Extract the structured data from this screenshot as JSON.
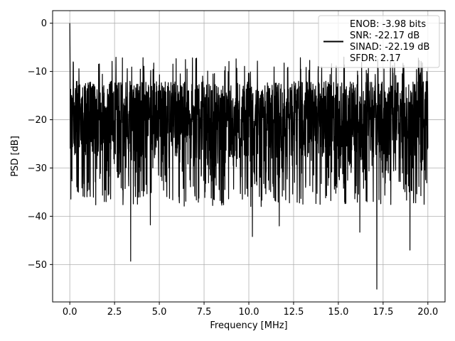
{
  "chart_data": {
    "type": "line",
    "title": "",
    "xlabel": "Frequency [MHz]",
    "ylabel": "PSD [dB]",
    "xlim": [
      -0.96,
      20.96
    ],
    "ylim": [
      -57.75,
      2.6
    ],
    "xticks": [
      0.0,
      2.5,
      5.0,
      7.5,
      10.0,
      12.5,
      15.0,
      17.5,
      20.0
    ],
    "xtick_labels": [
      "0.0",
      "2.5",
      "5.0",
      "7.5",
      "10.0",
      "12.5",
      "15.0",
      "17.5",
      "20.0"
    ],
    "yticks": [
      0,
      -10,
      -20,
      -30,
      -40,
      -50
    ],
    "ytick_labels": [
      "0",
      "−10",
      "−20",
      "−30",
      "−40",
      "−50"
    ],
    "grid": true,
    "legend_position": "top-right",
    "line_color": "#000000",
    "series": [
      {
        "legend_lines": [
          "ENOB: -3.98 bits",
          "SNR: -22.17 dB",
          "SINAD: -22.19 dB",
          "SFDR: 2.17"
        ],
        "peak": {
          "x": 0.0,
          "y": 0.0
        },
        "x_range": [
          0.0,
          20.0
        ],
        "typical_band": [
          -30,
          -10
        ],
        "notable_minima": [
          {
            "x": 3.4,
            "y": -49.3
          },
          {
            "x": 4.5,
            "y": -41.8
          },
          {
            "x": 10.2,
            "y": -44.2
          },
          {
            "x": 11.7,
            "y": -42.0
          },
          {
            "x": 16.2,
            "y": -43.3
          },
          {
            "x": 17.15,
            "y": -55.1
          },
          {
            "x": 19.0,
            "y": -47.0
          }
        ]
      }
    ]
  }
}
